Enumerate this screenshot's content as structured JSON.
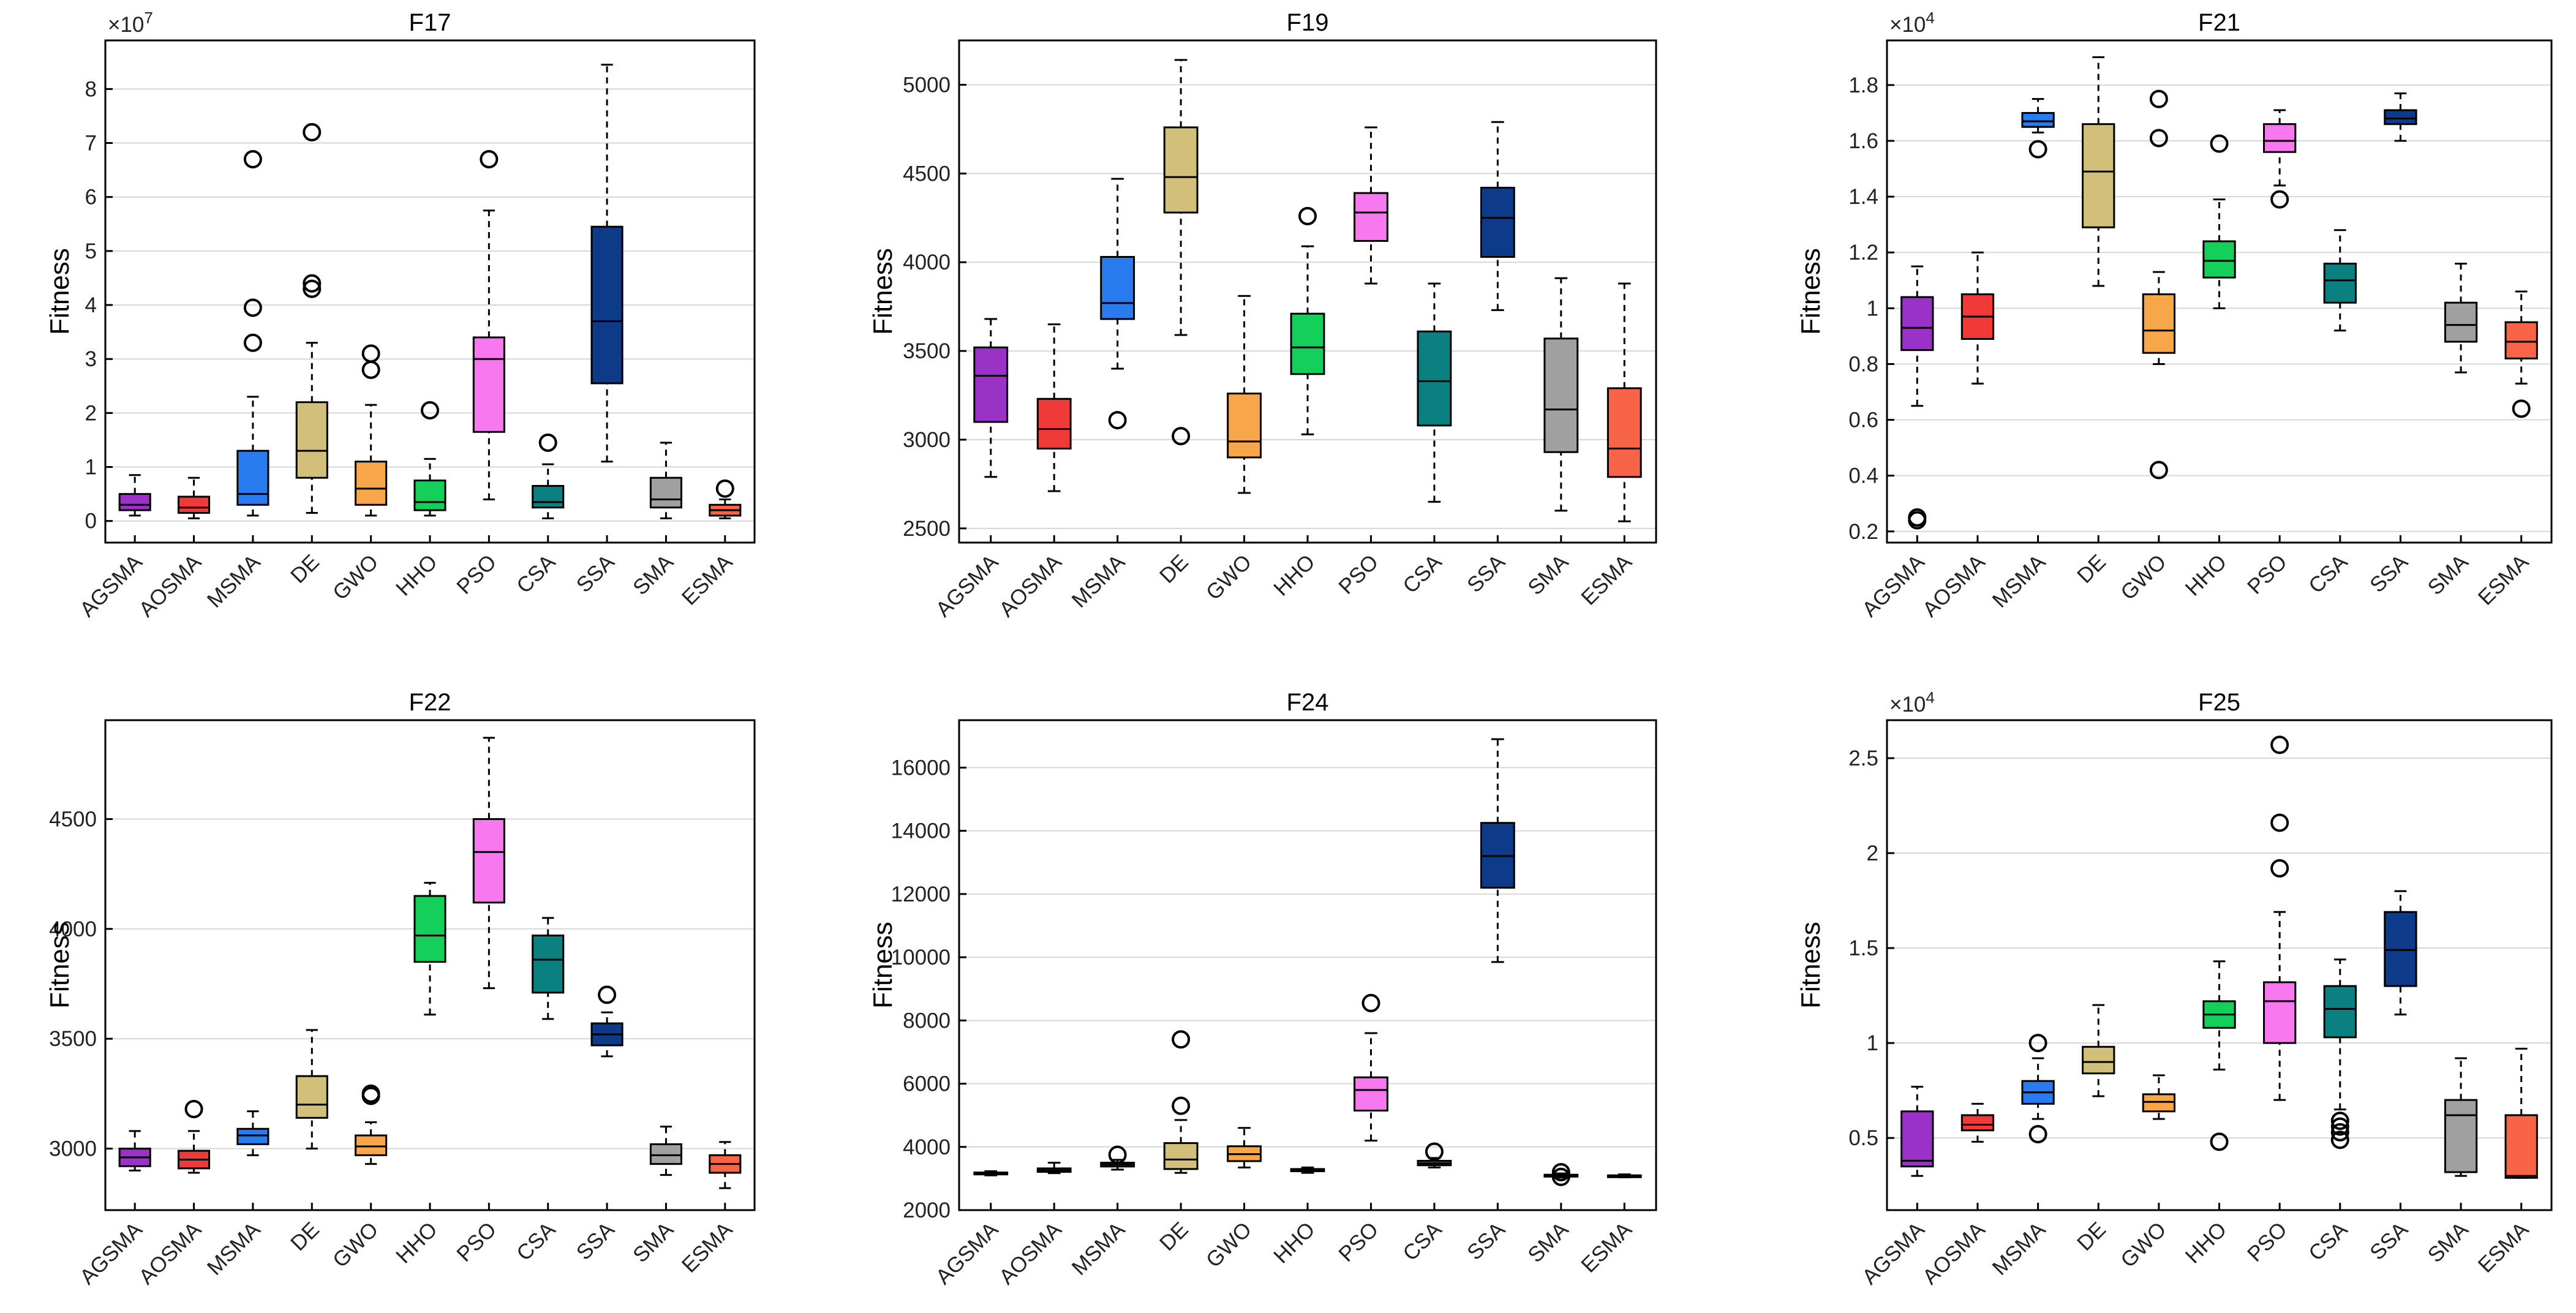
{
  "figure": {
    "category_colors": [
      "#9b32c8",
      "#f03a3a",
      "#2a7af0",
      "#d2c07a",
      "#f8a64a",
      "#14d05a",
      "#f878f0",
      "#0a8080",
      "#0e3a8a",
      "#a0a0a0",
      "#f86448"
    ]
  },
  "chart_data": [
    {
      "type": "box",
      "title": "F17",
      "ylabel": "Fitness",
      "exponent": "×10^7",
      "categories": [
        "AGSMA",
        "AOSMA",
        "MSMA",
        "DE",
        "GWO",
        "HHO",
        "PSO",
        "CSA",
        "SSA",
        "SMA",
        "ESMA"
      ],
      "ylim": [
        -0.4,
        8.9
      ],
      "yticks": [
        0,
        1,
        2,
        3,
        4,
        5,
        6,
        7,
        8
      ],
      "boxes": [
        {
          "whislo": 0.1,
          "q1": 0.2,
          "med": 0.3,
          "q3": 0.5,
          "whishi": 0.85,
          "fliers": []
        },
        {
          "whislo": 0.05,
          "q1": 0.15,
          "med": 0.25,
          "q3": 0.45,
          "whishi": 0.8,
          "fliers": []
        },
        {
          "whislo": 0.1,
          "q1": 0.3,
          "med": 0.5,
          "q3": 1.3,
          "whishi": 2.3,
          "fliers": [
            3.3,
            3.95,
            6.7
          ]
        },
        {
          "whislo": 0.15,
          "q1": 0.8,
          "med": 1.3,
          "q3": 2.2,
          "whishi": 3.3,
          "fliers": [
            4.3,
            4.4,
            7.2
          ]
        },
        {
          "whislo": 0.1,
          "q1": 0.3,
          "med": 0.6,
          "q3": 1.1,
          "whishi": 2.15,
          "fliers": [
            2.8,
            3.1
          ]
        },
        {
          "whislo": 0.1,
          "q1": 0.2,
          "med": 0.35,
          "q3": 0.75,
          "whishi": 1.15,
          "fliers": [
            2.05
          ]
        },
        {
          "whislo": 0.4,
          "q1": 1.65,
          "med": 3.0,
          "q3": 3.4,
          "whishi": 5.75,
          "fliers": [
            6.7
          ]
        },
        {
          "whislo": 0.05,
          "q1": 0.25,
          "med": 0.35,
          "q3": 0.65,
          "whishi": 1.05,
          "fliers": [
            1.45
          ]
        },
        {
          "whislo": 1.1,
          "q1": 2.55,
          "med": 3.7,
          "q3": 5.45,
          "whishi": 8.45,
          "fliers": []
        },
        {
          "whislo": 0.05,
          "q1": 0.25,
          "med": 0.4,
          "q3": 0.8,
          "whishi": 1.45,
          "fliers": []
        },
        {
          "whislo": 0.05,
          "q1": 0.1,
          "med": 0.2,
          "q3": 0.3,
          "whishi": 0.4,
          "fliers": [
            0.6
          ]
        }
      ]
    },
    {
      "type": "box",
      "title": "F19",
      "ylabel": "Fitness",
      "exponent": "",
      "categories": [
        "AGSMA",
        "AOSMA",
        "MSMA",
        "DE",
        "GWO",
        "HHO",
        "PSO",
        "CSA",
        "SSA",
        "SMA",
        "ESMA"
      ],
      "ylim": [
        2420,
        5250
      ],
      "yticks": [
        2500,
        3000,
        3500,
        4000,
        4500,
        5000
      ],
      "boxes": [
        {
          "whislo": 2790,
          "q1": 3100,
          "med": 3360,
          "q3": 3520,
          "whishi": 3680,
          "fliers": []
        },
        {
          "whislo": 2710,
          "q1": 2950,
          "med": 3060,
          "q3": 3230,
          "whishi": 3650,
          "fliers": []
        },
        {
          "whislo": 3400,
          "q1": 3680,
          "med": 3770,
          "q3": 4030,
          "whishi": 4470,
          "fliers": [
            3110
          ]
        },
        {
          "whislo": 3590,
          "q1": 4280,
          "med": 4480,
          "q3": 4760,
          "whishi": 5140,
          "fliers": [
            3020
          ]
        },
        {
          "whislo": 2700,
          "q1": 2900,
          "med": 2990,
          "q3": 3260,
          "whishi": 3810,
          "fliers": []
        },
        {
          "whislo": 3030,
          "q1": 3370,
          "med": 3520,
          "q3": 3710,
          "whishi": 4090,
          "fliers": [
            4260
          ]
        },
        {
          "whislo": 3880,
          "q1": 4120,
          "med": 4280,
          "q3": 4390,
          "whishi": 4760,
          "fliers": []
        },
        {
          "whislo": 2650,
          "q1": 3080,
          "med": 3330,
          "q3": 3610,
          "whishi": 3880,
          "fliers": []
        },
        {
          "whislo": 3730,
          "q1": 4030,
          "med": 4250,
          "q3": 4420,
          "whishi": 4790,
          "fliers": []
        },
        {
          "whislo": 2600,
          "q1": 2930,
          "med": 3170,
          "q3": 3570,
          "whishi": 3910,
          "fliers": []
        },
        {
          "whislo": 2540,
          "q1": 2790,
          "med": 2950,
          "q3": 3290,
          "whishi": 3880,
          "fliers": []
        }
      ]
    },
    {
      "type": "box",
      "title": "F21",
      "ylabel": "Fitness",
      "exponent": "×10^4",
      "categories": [
        "AGSMA",
        "AOSMA",
        "MSMA",
        "DE",
        "GWO",
        "HHO",
        "PSO",
        "CSA",
        "SSA",
        "SMA",
        "ESMA"
      ],
      "ylim": [
        0.16,
        1.96
      ],
      "yticks": [
        0.2,
        0.4,
        0.6,
        0.8,
        1.0,
        1.2,
        1.4,
        1.6,
        1.8
      ],
      "ytick_labels": [
        "0.2",
        "0.4",
        "0.6",
        "0.8",
        "1",
        "1.2",
        "1.4",
        "1.6",
        "1.8"
      ],
      "boxes": [
        {
          "whislo": 0.65,
          "q1": 0.85,
          "med": 0.93,
          "q3": 1.04,
          "whishi": 1.15,
          "fliers": [
            0.24,
            0.25
          ]
        },
        {
          "whislo": 0.73,
          "q1": 0.89,
          "med": 0.97,
          "q3": 1.05,
          "whishi": 1.2,
          "fliers": []
        },
        {
          "whislo": 1.63,
          "q1": 1.65,
          "med": 1.67,
          "q3": 1.7,
          "whishi": 1.75,
          "fliers": [
            1.57
          ]
        },
        {
          "whislo": 1.08,
          "q1": 1.29,
          "med": 1.49,
          "q3": 1.66,
          "whishi": 1.9,
          "fliers": []
        },
        {
          "whislo": 0.8,
          "q1": 0.84,
          "med": 0.92,
          "q3": 1.05,
          "whishi": 1.13,
          "fliers": [
            0.42,
            1.61,
            1.75
          ]
        },
        {
          "whislo": 1.0,
          "q1": 1.11,
          "med": 1.17,
          "q3": 1.24,
          "whishi": 1.39,
          "fliers": [
            1.59
          ]
        },
        {
          "whislo": 1.44,
          "q1": 1.56,
          "med": 1.6,
          "q3": 1.66,
          "whishi": 1.71,
          "fliers": [
            1.39
          ]
        },
        {
          "whislo": 0.92,
          "q1": 1.02,
          "med": 1.1,
          "q3": 1.16,
          "whishi": 1.28,
          "fliers": []
        },
        {
          "whislo": 1.6,
          "q1": 1.66,
          "med": 1.68,
          "q3": 1.71,
          "whishi": 1.77,
          "fliers": []
        },
        {
          "whislo": 0.77,
          "q1": 0.88,
          "med": 0.94,
          "q3": 1.02,
          "whishi": 1.16,
          "fliers": []
        },
        {
          "whislo": 0.73,
          "q1": 0.82,
          "med": 0.88,
          "q3": 0.95,
          "whishi": 1.06,
          "fliers": [
            0.64
          ]
        }
      ]
    },
    {
      "type": "box",
      "title": "F22",
      "ylabel": "Fitness",
      "exponent": "",
      "categories": [
        "AGSMA",
        "AOSMA",
        "MSMA",
        "DE",
        "GWO",
        "HHO",
        "PSO",
        "CSA",
        "SSA",
        "SMA",
        "ESMA"
      ],
      "ylim": [
        2720,
        4950
      ],
      "yticks": [
        3000,
        3500,
        4000,
        4500
      ],
      "boxes": [
        {
          "whislo": 2900,
          "q1": 2920,
          "med": 2960,
          "q3": 3000,
          "whishi": 3080,
          "fliers": []
        },
        {
          "whislo": 2890,
          "q1": 2910,
          "med": 2950,
          "q3": 2990,
          "whishi": 3080,
          "fliers": [
            3180
          ]
        },
        {
          "whislo": 2970,
          "q1": 3020,
          "med": 3060,
          "q3": 3090,
          "whishi": 3170,
          "fliers": []
        },
        {
          "whislo": 3000,
          "q1": 3140,
          "med": 3200,
          "q3": 3330,
          "whishi": 3540,
          "fliers": []
        },
        {
          "whislo": 2930,
          "q1": 2970,
          "med": 3010,
          "q3": 3060,
          "whishi": 3120,
          "fliers": [
            3240,
            3250
          ]
        },
        {
          "whislo": 3610,
          "q1": 3850,
          "med": 3970,
          "q3": 4150,
          "whishi": 4210,
          "fliers": []
        },
        {
          "whislo": 3730,
          "q1": 4120,
          "med": 4350,
          "q3": 4500,
          "whishi": 4870,
          "fliers": []
        },
        {
          "whislo": 3590,
          "q1": 3710,
          "med": 3860,
          "q3": 3970,
          "whishi": 4050,
          "fliers": []
        },
        {
          "whislo": 3420,
          "q1": 3470,
          "med": 3520,
          "q3": 3570,
          "whishi": 3620,
          "fliers": [
            3700
          ]
        },
        {
          "whislo": 2880,
          "q1": 2930,
          "med": 2970,
          "q3": 3020,
          "whishi": 3100,
          "fliers": []
        },
        {
          "whislo": 2820,
          "q1": 2890,
          "med": 2930,
          "q3": 2970,
          "whishi": 3030,
          "fliers": []
        }
      ]
    },
    {
      "type": "box",
      "title": "F24",
      "ylabel": "Fitness",
      "exponent": "",
      "categories": [
        "AGSMA",
        "AOSMA",
        "MSMA",
        "DE",
        "GWO",
        "HHO",
        "PSO",
        "CSA",
        "SSA",
        "SMA",
        "ESMA"
      ],
      "ylim": [
        2000,
        17500
      ],
      "yticks": [
        2000,
        4000,
        6000,
        8000,
        10000,
        12000,
        14000,
        16000
      ],
      "boxes": [
        {
          "whislo": 3100,
          "q1": 3130,
          "med": 3160,
          "q3": 3190,
          "whishi": 3230,
          "fliers": []
        },
        {
          "whislo": 3170,
          "q1": 3210,
          "med": 3260,
          "q3": 3320,
          "whishi": 3500,
          "fliers": []
        },
        {
          "whislo": 3280,
          "q1": 3380,
          "med": 3440,
          "q3": 3500,
          "whishi": 3590,
          "fliers": [
            3750
          ]
        },
        {
          "whislo": 3180,
          "q1": 3300,
          "med": 3600,
          "q3": 4120,
          "whishi": 4850,
          "fliers": [
            5300,
            7400
          ]
        },
        {
          "whislo": 3350,
          "q1": 3550,
          "med": 3770,
          "q3": 4020,
          "whishi": 4600,
          "fliers": []
        },
        {
          "whislo": 3180,
          "q1": 3230,
          "med": 3260,
          "q3": 3300,
          "whishi": 3350,
          "fliers": []
        },
        {
          "whislo": 4200,
          "q1": 5150,
          "med": 5800,
          "q3": 6200,
          "whishi": 7600,
          "fliers": [
            8550
          ]
        },
        {
          "whislo": 3350,
          "q1": 3420,
          "med": 3480,
          "q3": 3560,
          "whishi": 3650,
          "fliers": [
            3850
          ]
        },
        {
          "whislo": 9850,
          "q1": 12200,
          "med": 13200,
          "q3": 14250,
          "whishi": 16900,
          "fliers": []
        },
        {
          "whislo": 3030,
          "q1": 3060,
          "med": 3090,
          "q3": 3120,
          "whishi": 3160,
          "fliers": [
            3050,
            3200
          ]
        },
        {
          "whislo": 3040,
          "q1": 3060,
          "med": 3080,
          "q3": 3100,
          "whishi": 3130,
          "fliers": []
        }
      ]
    },
    {
      "type": "box",
      "title": "F25",
      "ylabel": "Fitness",
      "exponent": "×10^4",
      "categories": [
        "AGSMA",
        "AOSMA",
        "MSMA",
        "DE",
        "GWO",
        "HHO",
        "PSO",
        "CSA",
        "SSA",
        "SMA",
        "ESMA"
      ],
      "ylim": [
        0.12,
        2.7
      ],
      "yticks": [
        0.5,
        1.0,
        1.5,
        2.0,
        2.5
      ],
      "ytick_labels": [
        "0.5",
        "1",
        "1.5",
        "2",
        "2.5"
      ],
      "boxes": [
        {
          "whislo": 0.3,
          "q1": 0.35,
          "med": 0.38,
          "q3": 0.64,
          "whishi": 0.77,
          "fliers": []
        },
        {
          "whislo": 0.48,
          "q1": 0.54,
          "med": 0.57,
          "q3": 0.62,
          "whishi": 0.68,
          "fliers": []
        },
        {
          "whislo": 0.6,
          "q1": 0.68,
          "med": 0.74,
          "q3": 0.8,
          "whishi": 0.92,
          "fliers": [
            0.52,
            1.0
          ]
        },
        {
          "whislo": 0.72,
          "q1": 0.84,
          "med": 0.9,
          "q3": 0.98,
          "whishi": 1.2,
          "fliers": []
        },
        {
          "whislo": 0.6,
          "q1": 0.64,
          "med": 0.69,
          "q3": 0.73,
          "whishi": 0.83,
          "fliers": []
        },
        {
          "whislo": 0.86,
          "q1": 1.08,
          "med": 1.15,
          "q3": 1.22,
          "whishi": 1.43,
          "fliers": [
            0.48
          ]
        },
        {
          "whislo": 0.7,
          "q1": 1.0,
          "med": 1.22,
          "q3": 1.32,
          "whishi": 1.69,
          "fliers": [
            1.92,
            2.16,
            2.57
          ]
        },
        {
          "whislo": 0.65,
          "q1": 1.03,
          "med": 1.18,
          "q3": 1.3,
          "whishi": 1.44,
          "fliers": [
            0.49,
            0.53,
            0.56,
            0.59
          ]
        },
        {
          "whislo": 1.15,
          "q1": 1.3,
          "med": 1.49,
          "q3": 1.69,
          "whishi": 1.8,
          "fliers": []
        },
        {
          "whislo": 0.3,
          "q1": 0.32,
          "med": 0.62,
          "q3": 0.7,
          "whishi": 0.92,
          "fliers": []
        },
        {
          "whislo": 0.29,
          "q1": 0.29,
          "med": 0.3,
          "q3": 0.62,
          "whishi": 0.97,
          "fliers": []
        }
      ]
    }
  ]
}
